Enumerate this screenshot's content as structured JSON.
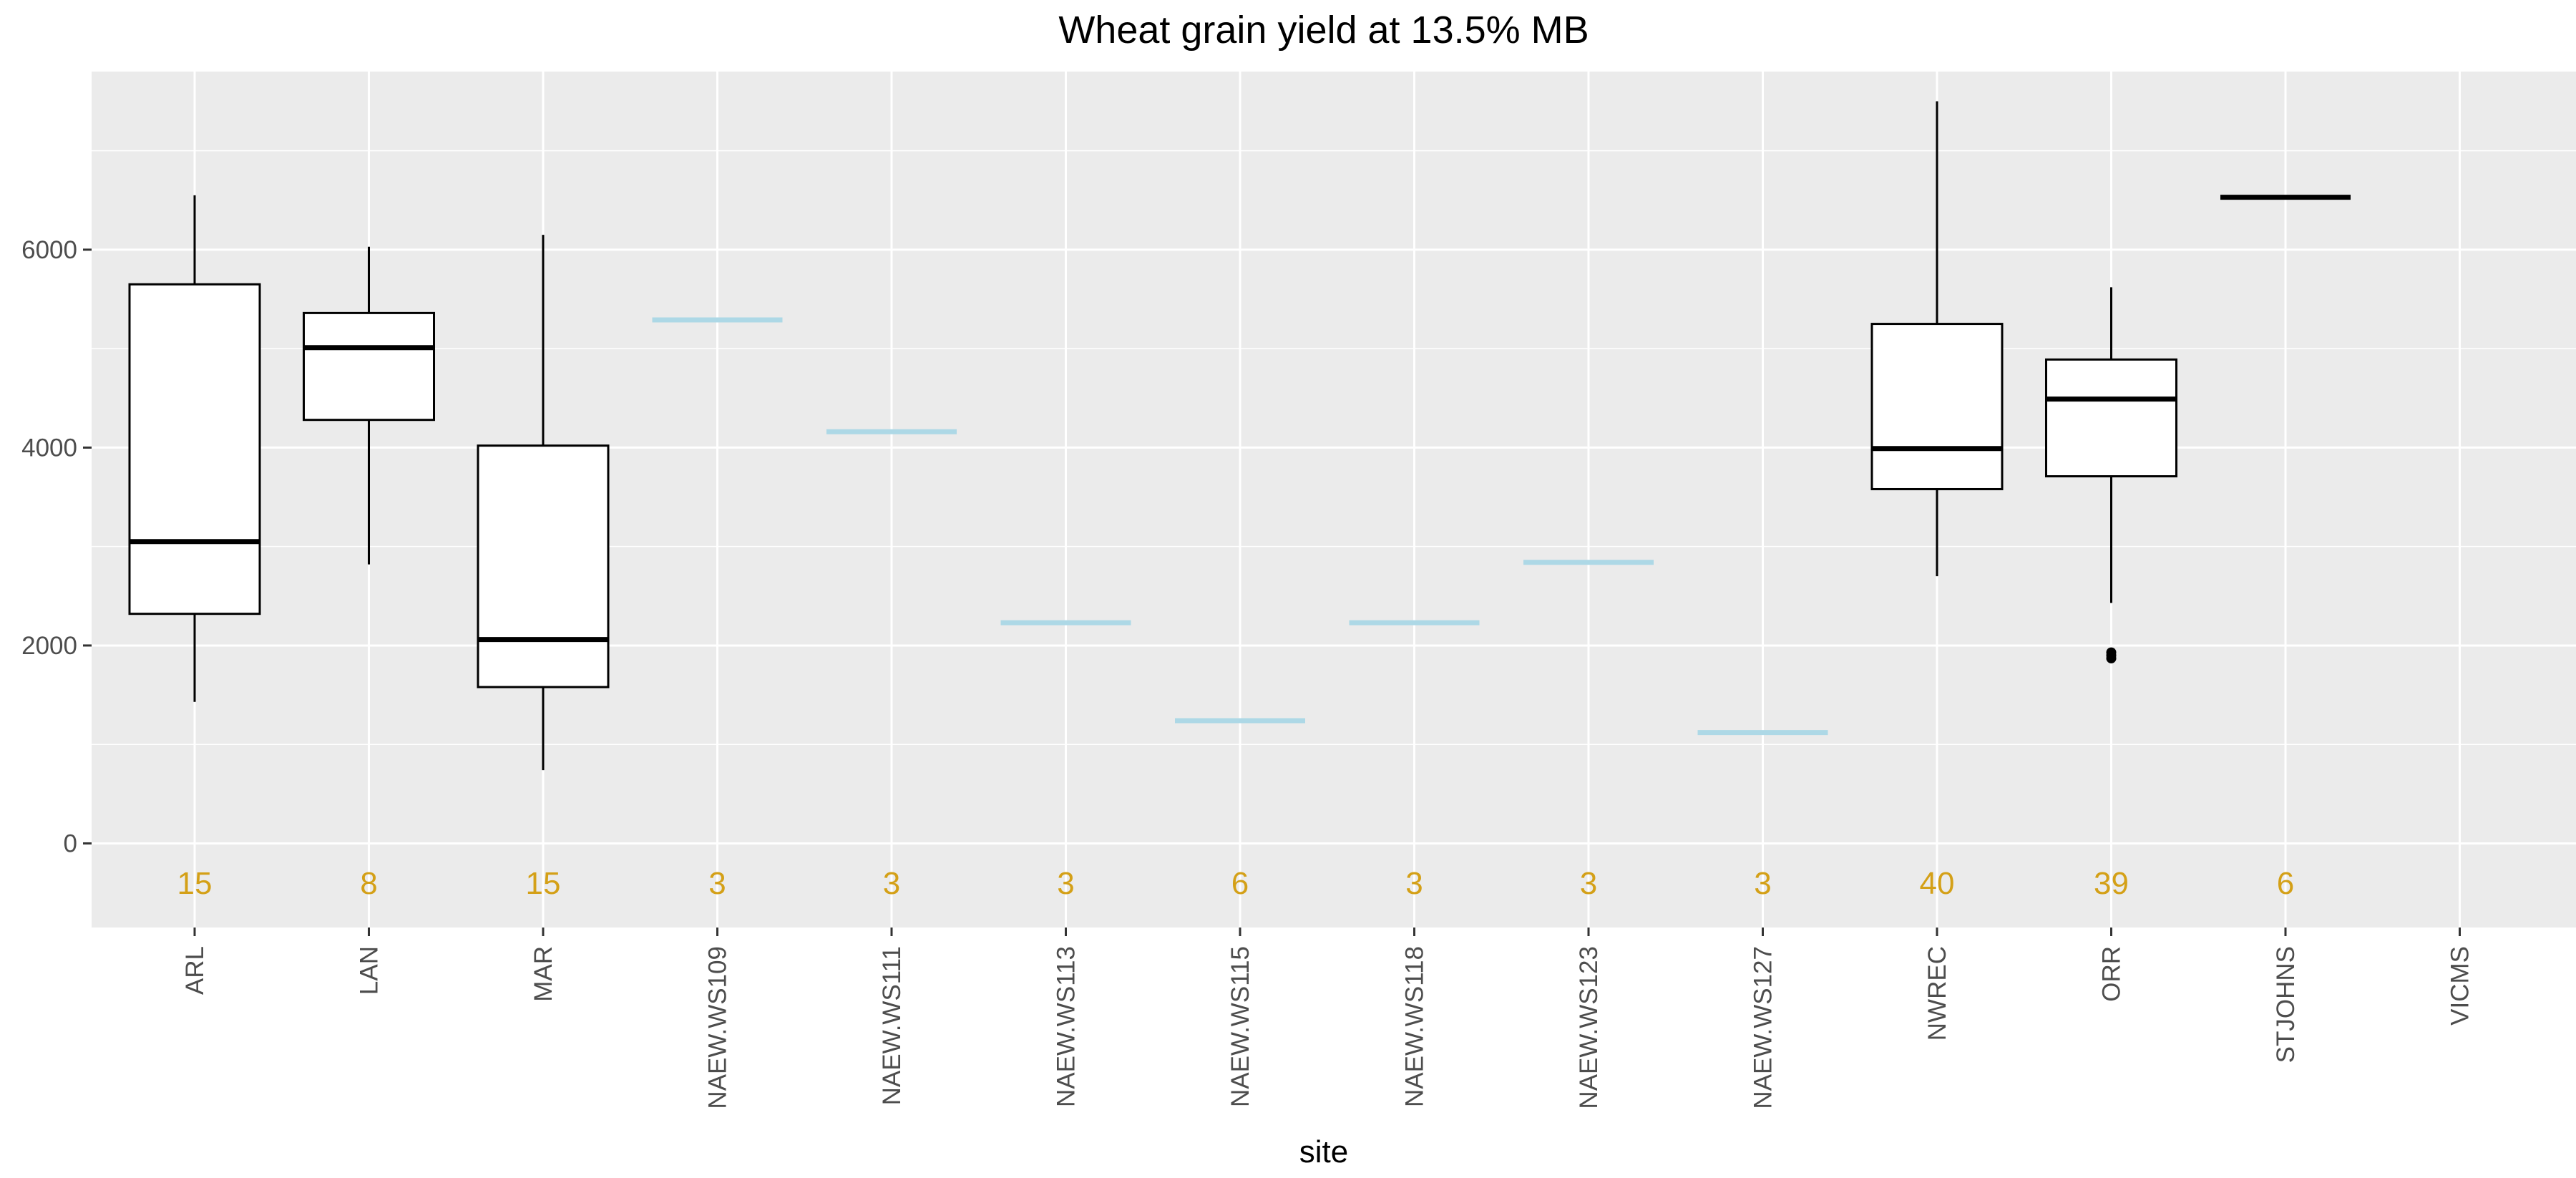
{
  "chart_data": {
    "type": "boxplot",
    "title": "Wheat grain yield at 13.5% MB",
    "xlabel": "site",
    "ylabel": "",
    "ylim": [
      -850,
      7800
    ],
    "yticks": [
      0,
      2000,
      4000,
      6000
    ],
    "grid": true,
    "legend": "none",
    "categories": [
      "ARL",
      "LAN",
      "MAR",
      "NAEW.WS109",
      "NAEW.WS111",
      "NAEW.WS113",
      "NAEW.WS115",
      "NAEW.WS118",
      "NAEW.WS123",
      "NAEW.WS127",
      "NWREC",
      "ORR",
      "STJOHNS",
      "VICMS"
    ],
    "boxes": [
      {
        "site": "ARL",
        "min": 1430,
        "q1": 2320,
        "median": 3050,
        "q3": 5650,
        "max": 6550,
        "outliers": []
      },
      {
        "site": "LAN",
        "min": 2820,
        "q1": 4280,
        "median": 5010,
        "q3": 5360,
        "max": 6030,
        "outliers": []
      },
      {
        "site": "MAR",
        "min": 740,
        "q1": 1580,
        "median": 2060,
        "q3": 4020,
        "max": 6150,
        "outliers": []
      },
      {
        "site": "NWREC",
        "min": 2700,
        "q1": 3580,
        "median": 3990,
        "q3": 5250,
        "max": 7500,
        "outliers": []
      },
      {
        "site": "ORR",
        "min": 2430,
        "q1": 3710,
        "median": 4490,
        "q3": 4890,
        "max": 5620,
        "outliers": [
          1870,
          1900,
          1930
        ]
      },
      {
        "site": "STJOHNS",
        "min": 6530,
        "q1": 6530,
        "median": 6530,
        "q3": 6530,
        "max": 6530,
        "outliers": []
      }
    ],
    "means": [
      {
        "site": "NAEW.WS109",
        "value": 5290
      },
      {
        "site": "NAEW.WS111",
        "value": 4160
      },
      {
        "site": "NAEW.WS113",
        "value": 2230
      },
      {
        "site": "NAEW.WS115",
        "value": 1240
      },
      {
        "site": "NAEW.WS118",
        "value": 2230
      },
      {
        "site": "NAEW.WS123",
        "value": 2840
      },
      {
        "site": "NAEW.WS127",
        "value": 1120
      }
    ],
    "counts": [
      {
        "site": "ARL",
        "n": "15"
      },
      {
        "site": "LAN",
        "n": "8"
      },
      {
        "site": "MAR",
        "n": "15"
      },
      {
        "site": "NAEW.WS109",
        "n": "3"
      },
      {
        "site": "NAEW.WS111",
        "n": "3"
      },
      {
        "site": "NAEW.WS113",
        "n": "3"
      },
      {
        "site": "NAEW.WS115",
        "n": "6"
      },
      {
        "site": "NAEW.WS118",
        "n": "3"
      },
      {
        "site": "NAEW.WS123",
        "n": "3"
      },
      {
        "site": "NAEW.WS127",
        "n": "3"
      },
      {
        "site": "NWREC",
        "n": "40"
      },
      {
        "site": "ORR",
        "n": "39"
      },
      {
        "site": "STJOHNS",
        "n": "6"
      }
    ],
    "count_y": -400,
    "colors": {
      "panel": "#ebebeb",
      "grid": "#ffffff",
      "box_fill": "#ffffff",
      "box_stroke": "#000000",
      "mean_line": "#add8e6",
      "count_text": "#d4a017"
    }
  }
}
